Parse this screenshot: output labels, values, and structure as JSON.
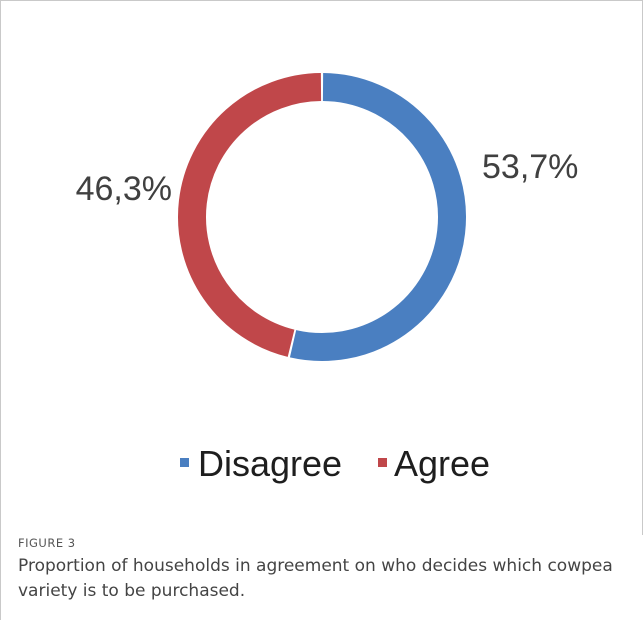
{
  "figure": {
    "label": "FIGURE 3",
    "caption": "Proportion of households in agreement on who decides which cowpea variety is to be purchased."
  },
  "colors": {
    "disagree": "#4a7fc1",
    "agree": "#c0474a"
  },
  "chart_data": {
    "type": "pie",
    "variant": "donut",
    "title": "",
    "categories": [
      "Disagree",
      "Agree"
    ],
    "values": [
      53.7,
      46.3
    ],
    "value_labels": [
      "53,7%",
      "46,3%"
    ],
    "unit": "%",
    "legend_position": "bottom",
    "start_angle": "top, clockwise"
  }
}
